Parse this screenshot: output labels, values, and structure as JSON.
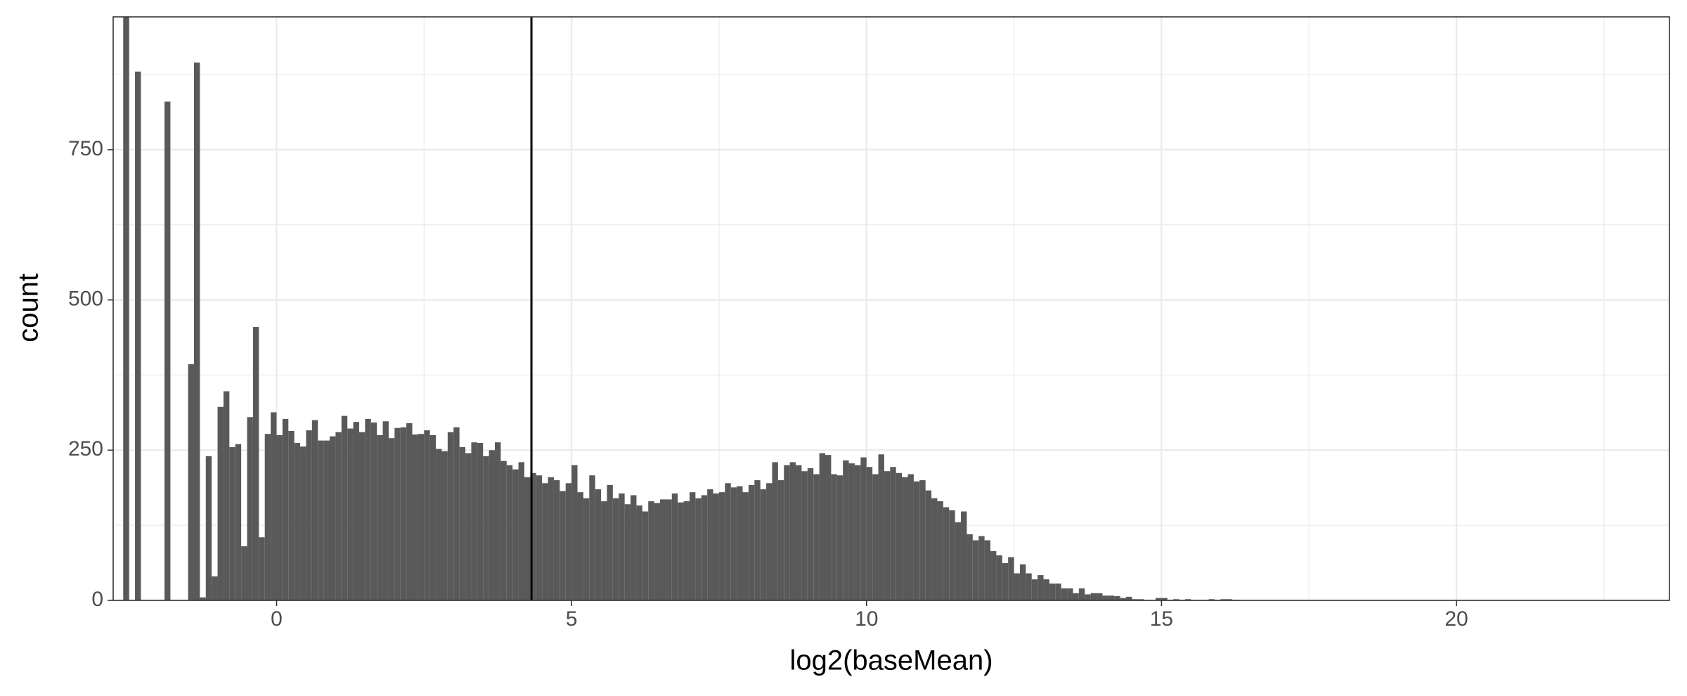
{
  "chart_data": {
    "type": "histogram",
    "x_label": "log2(baseMean)",
    "y_label": "count",
    "bins": [
      -2.6,
      -2.5,
      -2.4,
      -2.3,
      -2.2,
      -2.1,
      -2.0,
      -1.9,
      -1.8,
      -1.7,
      -1.6,
      -1.5,
      -1.4,
      -1.3,
      -1.2,
      -1.1,
      -1.0,
      -0.9,
      -0.8,
      -0.7,
      -0.6,
      -0.5,
      -0.4,
      -0.3,
      -0.2,
      -0.1,
      0,
      0.1,
      0.2,
      0.3,
      0.4,
      0.5,
      0.6,
      0.7,
      0.8,
      0.9,
      1.0,
      1.1,
      1.2,
      1.3,
      1.4,
      1.5,
      1.6,
      1.7,
      1.8,
      1.9,
      2.0,
      2.1,
      2.2,
      2.3,
      2.4,
      2.5,
      2.6,
      2.7,
      2.8,
      2.9,
      3.0,
      3.1,
      3.2,
      3.3,
      3.4,
      3.5,
      3.6,
      3.7,
      3.8,
      3.9,
      4.0,
      4.1,
      4.2,
      4.3,
      4.4,
      4.5,
      4.6,
      4.7,
      4.8,
      4.9,
      5.0,
      5.1,
      5.2,
      5.3,
      5.4,
      5.5,
      5.6,
      5.7,
      5.8,
      5.9,
      6.0,
      6.1,
      6.2,
      6.3,
      6.4,
      6.5,
      6.6,
      6.7,
      6.8,
      6.9,
      7.0,
      7.1,
      7.2,
      7.3,
      7.4,
      7.5,
      7.6,
      7.7,
      7.8,
      7.9,
      8.0,
      8.1,
      8.2,
      8.3,
      8.4,
      8.5,
      8.6,
      8.7,
      8.8,
      8.9,
      9.0,
      9.1,
      9.2,
      9.3,
      9.4,
      9.5,
      9.6,
      9.7,
      9.8,
      9.9,
      10.0,
      10.1,
      10.2,
      10.3,
      10.4,
      10.5,
      10.6,
      10.7,
      10.8,
      10.9,
      11.0,
      11.1,
      11.2,
      11.3,
      11.4,
      11.5,
      11.6,
      11.7,
      11.8,
      11.9,
      12.0,
      12.1,
      12.2,
      12.3,
      12.4,
      12.5,
      12.6,
      12.7,
      12.8,
      12.9,
      13.0,
      13.1,
      13.2,
      13.3,
      13.4,
      13.5,
      13.6,
      13.7,
      13.8,
      13.9,
      14.0,
      14.1,
      14.2,
      14.3,
      14.4,
      14.5,
      14.6,
      14.7,
      14.8,
      14.9,
      15.0,
      15.1,
      15.2,
      15.3,
      15.4,
      15.5,
      15.6,
      15.7,
      15.8,
      15.9,
      16.0,
      16.1,
      16.2,
      16.3,
      16.4
    ],
    "values": [
      990,
      0,
      880,
      0,
      0,
      0,
      0,
      830,
      0,
      0,
      0,
      393,
      895,
      5,
      240,
      40,
      322,
      348,
      255,
      260,
      90,
      305,
      455,
      105,
      277,
      313,
      275,
      302,
      282,
      262,
      256,
      283,
      300,
      266,
      266,
      273,
      280,
      307,
      286,
      297,
      280,
      302,
      296,
      275,
      298,
      270,
      287,
      288,
      295,
      276,
      277,
      283,
      275,
      252,
      248,
      280,
      288,
      255,
      245,
      263,
      262,
      240,
      250,
      263,
      232,
      225,
      218,
      230,
      205,
      212,
      208,
      195,
      205,
      200,
      182,
      195,
      225,
      180,
      170,
      208,
      185,
      165,
      192,
      170,
      178,
      160,
      175,
      158,
      148,
      165,
      162,
      168,
      168,
      178,
      163,
      165,
      180,
      170,
      175,
      185,
      178,
      180,
      195,
      188,
      190,
      180,
      192,
      200,
      185,
      195,
      230,
      200,
      225,
      230,
      225,
      215,
      220,
      210,
      245,
      242,
      210,
      208,
      233,
      228,
      225,
      238,
      222,
      210,
      243,
      215,
      222,
      212,
      205,
      210,
      198,
      200,
      183,
      170,
      165,
      155,
      150,
      130,
      148,
      110,
      100,
      107,
      100,
      82,
      75,
      62,
      72,
      45,
      60,
      45,
      35,
      42,
      35,
      28,
      28,
      20,
      20,
      12,
      20,
      10,
      12,
      12,
      8,
      8,
      7,
      4,
      6,
      2,
      2,
      1,
      0,
      4,
      4,
      1,
      2,
      1,
      2,
      1,
      0,
      1,
      2,
      1,
      2,
      2,
      1,
      0
    ],
    "color": "#595959",
    "vline": 4.32,
    "xlim": [
      -2.77,
      23.61
    ],
    "xticks": [
      0,
      5,
      10,
      15,
      20
    ],
    "ylim": [
      0,
      971
    ],
    "yticks": [
      0,
      250,
      500,
      750
    ],
    "grid": true
  }
}
